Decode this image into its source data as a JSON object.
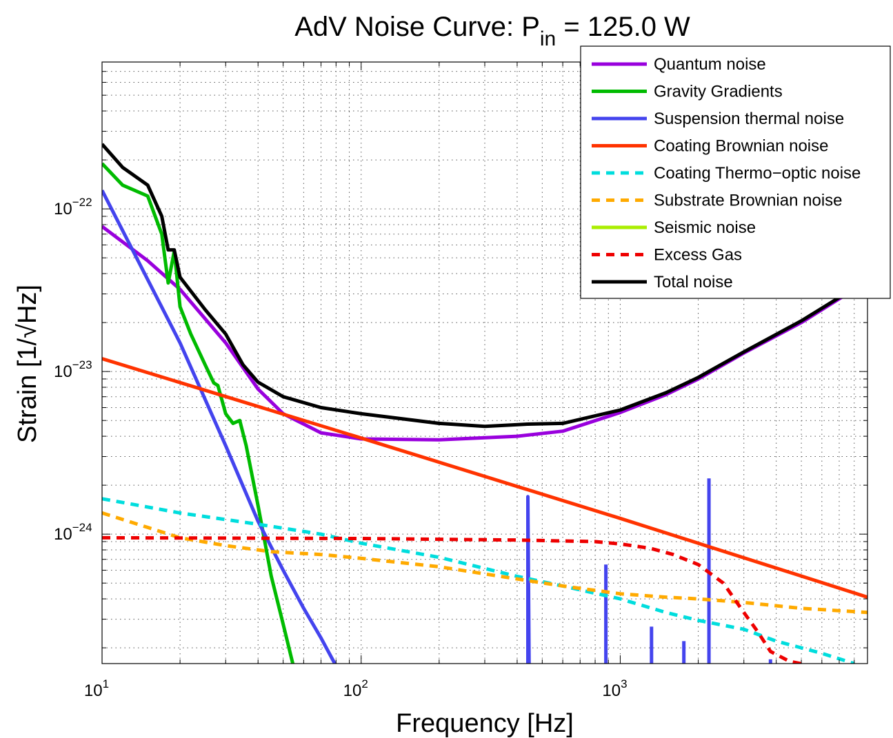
{
  "chart_data": {
    "type": "line",
    "title": {
      "main": "AdV Noise Curve: P",
      "subscript": "in",
      "rest": " = 125.0 W"
    },
    "xlabel": "Frequency [Hz]",
    "ylabel": "Strain [1/√Hz]",
    "x_scale": "log",
    "y_scale": "log",
    "xlim": [
      10,
      9000
    ],
    "ylim": [
      1.6e-25,
      8e-22
    ],
    "grid": true,
    "legend_position": "top-right",
    "x_ticks": [
      {
        "value": 10,
        "base": "10",
        "exp": "1"
      },
      {
        "value": 100,
        "base": "10",
        "exp": "2"
      },
      {
        "value": 1000,
        "base": "10",
        "exp": "3"
      }
    ],
    "y_ticks": [
      {
        "value": 1e-24,
        "base": "10",
        "exp": "−24"
      },
      {
        "value": 1e-23,
        "base": "10",
        "exp": "−23"
      },
      {
        "value": 1e-22,
        "base": "10",
        "exp": "−22"
      }
    ],
    "series": [
      {
        "name": "Quantum noise",
        "color": "#9900dd",
        "dashed": false,
        "points": [
          [
            10,
            7.8e-23
          ],
          [
            15,
            4.8e-23
          ],
          [
            20,
            3.2e-23
          ],
          [
            30,
            1.5e-23
          ],
          [
            40,
            7.8e-24
          ],
          [
            50,
            5.5e-24
          ],
          [
            70,
            4.2e-24
          ],
          [
            100,
            3.85e-24
          ],
          [
            200,
            3.8e-24
          ],
          [
            400,
            4e-24
          ],
          [
            600,
            4.3e-24
          ],
          [
            1000,
            5.6e-24
          ],
          [
            1500,
            7.2e-24
          ],
          [
            2000,
            9e-24
          ],
          [
            3000,
            1.3e-23
          ],
          [
            5000,
            2e-23
          ],
          [
            7000,
            2.8e-23
          ],
          [
            9000,
            3.6e-23
          ]
        ]
      },
      {
        "name": "Gravity Gradients",
        "color": "#00bb00",
        "dashed": false,
        "points": [
          [
            10,
            1.9e-22
          ],
          [
            12,
            1.4e-22
          ],
          [
            15,
            1.2e-22
          ],
          [
            17,
            7e-23
          ],
          [
            18,
            3.5e-23
          ],
          [
            19,
            5.5e-23
          ],
          [
            20,
            2.5e-23
          ],
          [
            22,
            1.7e-23
          ],
          [
            25,
            1.1e-23
          ],
          [
            27,
            8.5e-24
          ],
          [
            28,
            8.2e-24
          ],
          [
            30,
            5.5e-24
          ],
          [
            32,
            4.8e-24
          ],
          [
            34,
            5e-24
          ],
          [
            36,
            3.5e-24
          ],
          [
            40,
            1.5e-24
          ],
          [
            45,
            5.5e-25
          ],
          [
            50,
            2.8e-25
          ],
          [
            55,
            1.5e-25
          ]
        ]
      },
      {
        "name": "Suspension thermal noise",
        "color": "#4444ee",
        "dashed": false,
        "points": [
          [
            10,
            1.3e-22
          ],
          [
            20,
            1.5e-23
          ],
          [
            30,
            3.5e-24
          ],
          [
            40,
            1.2e-24
          ],
          [
            50,
            6e-25
          ],
          [
            60,
            3.5e-25
          ],
          [
            70,
            2.3e-25
          ],
          [
            80,
            1.55e-25
          ]
        ]
      },
      {
        "name": "Suspension violin mode at 440 Hz",
        "color": "#4444ee",
        "dashed": false,
        "points": [
          [
            440,
            1.55e-25
          ],
          [
            440,
            1.7e-24
          ],
          [
            445,
            1.55e-25
          ]
        ]
      },
      {
        "name": "Suspension violin mode at 880 Hz",
        "color": "#4444ee",
        "dashed": false,
        "points": [
          [
            880,
            1.55e-25
          ],
          [
            880,
            6.5e-25
          ]
        ]
      },
      {
        "name": "Suspension violin mode at 1320 Hz",
        "color": "#4444ee",
        "dashed": false,
        "points": [
          [
            1320,
            1.55e-25
          ],
          [
            1320,
            2.7e-25
          ]
        ]
      },
      {
        "name": "Suspension violin mode at 1760 Hz",
        "color": "#4444ee",
        "dashed": false,
        "points": [
          [
            1760,
            1.55e-25
          ],
          [
            1760,
            2.2e-25
          ]
        ]
      },
      {
        "name": "Suspension violin mode at 2200 Hz",
        "color": "#4444ee",
        "dashed": false,
        "points": [
          [
            2200,
            1.55e-25
          ],
          [
            2200,
            2.2e-24
          ]
        ]
      },
      {
        "name": "Suspension thermal noise high-frequency tail",
        "color": "#4444ee",
        "dashed": false,
        "points": [
          [
            3800,
            1.55e-25
          ],
          [
            3800,
            1.7e-25
          ]
        ]
      },
      {
        "name": "Coating Brownian noise",
        "color": "#ff3300",
        "dashed": false,
        "points": [
          [
            10,
            1.2e-23
          ],
          [
            100,
            3.9e-24
          ],
          [
            1000,
            1.25e-24
          ],
          [
            9000,
            4.1e-25
          ]
        ]
      },
      {
        "name": "Coating Thermo−optic noise",
        "color": "#00dddd",
        "dashed": true,
        "points": [
          [
            10,
            1.65e-24
          ],
          [
            20,
            1.35e-24
          ],
          [
            40,
            1.15e-24
          ],
          [
            70,
            1e-24
          ],
          [
            100,
            8.8e-25
          ],
          [
            200,
            7.2e-25
          ],
          [
            400,
            5.5e-25
          ],
          [
            600,
            4.8e-25
          ],
          [
            1000,
            4e-25
          ],
          [
            1500,
            3.3e-25
          ],
          [
            2000,
            2.95e-25
          ],
          [
            3000,
            2.6e-25
          ],
          [
            4000,
            2.2e-25
          ],
          [
            6000,
            1.85e-25
          ],
          [
            8000,
            1.6e-25
          ]
        ]
      },
      {
        "name": "Substrate Brownian noise",
        "color": "#ffaa00",
        "dashed": true,
        "points": [
          [
            10,
            1.35e-24
          ],
          [
            15,
            1.1e-24
          ],
          [
            20,
            9.5e-25
          ],
          [
            30,
            8.5e-25
          ],
          [
            45,
            7.8e-25
          ],
          [
            70,
            7.5e-25
          ],
          [
            100,
            7.1e-25
          ],
          [
            200,
            6.3e-25
          ],
          [
            400,
            5.3e-25
          ],
          [
            600,
            4.8e-25
          ],
          [
            1000,
            4.3e-25
          ],
          [
            1500,
            4.1e-25
          ],
          [
            2000,
            4e-25
          ],
          [
            3000,
            3.8e-25
          ],
          [
            5000,
            3.5e-25
          ],
          [
            9000,
            3.3e-25
          ]
        ]
      },
      {
        "name": "Seismic noise",
        "color": "#aaee00",
        "dashed": false,
        "points": []
      },
      {
        "name": "Excess Gas",
        "color": "#ee0000",
        "dashed": true,
        "points": [
          [
            10,
            9.5e-25
          ],
          [
            100,
            9.4e-25
          ],
          [
            200,
            9.3e-25
          ],
          [
            400,
            9.2e-25
          ],
          [
            800,
            9e-25
          ],
          [
            1000,
            8.7e-25
          ],
          [
            1300,
            8.2e-25
          ],
          [
            1600,
            7.5e-25
          ],
          [
            2000,
            6.5e-25
          ],
          [
            2500,
            5e-25
          ],
          [
            3000,
            3.3e-25
          ],
          [
            3400,
            2.5e-25
          ],
          [
            3800,
            1.9e-25
          ],
          [
            4500,
            1.65e-25
          ],
          [
            5500,
            1.55e-25
          ]
        ]
      },
      {
        "name": "Total noise",
        "color": "#000000",
        "dashed": false,
        "points": [
          [
            10,
            2.5e-22
          ],
          [
            12,
            1.8e-22
          ],
          [
            15,
            1.4e-22
          ],
          [
            17,
            9e-23
          ],
          [
            18,
            5.6e-23
          ],
          [
            19,
            5.6e-23
          ],
          [
            20,
            3.8e-23
          ],
          [
            25,
            2.4e-23
          ],
          [
            30,
            1.7e-23
          ],
          [
            35,
            1.1e-23
          ],
          [
            40,
            8.6e-24
          ],
          [
            50,
            7e-24
          ],
          [
            70,
            6e-24
          ],
          [
            100,
            5.5e-24
          ],
          [
            200,
            4.8e-24
          ],
          [
            300,
            4.6e-24
          ],
          [
            440,
            4.75e-24
          ],
          [
            600,
            4.8e-24
          ],
          [
            1000,
            5.8e-24
          ],
          [
            1500,
            7.4e-24
          ],
          [
            2000,
            9.2e-24
          ],
          [
            3000,
            1.32e-23
          ],
          [
            5000,
            2.05e-23
          ],
          [
            7000,
            2.85e-23
          ],
          [
            9000,
            3.65e-23
          ]
        ]
      }
    ],
    "legend": [
      {
        "label": "Quantum noise",
        "color": "#9900dd",
        "dashed": false
      },
      {
        "label": "Gravity Gradients",
        "color": "#00bb00",
        "dashed": false
      },
      {
        "label": "Suspension thermal noise",
        "color": "#4444ee",
        "dashed": false
      },
      {
        "label": "Coating Brownian noise",
        "color": "#ff3300",
        "dashed": false
      },
      {
        "label": "Coating Thermo−optic noise",
        "color": "#00dddd",
        "dashed": true
      },
      {
        "label": "Substrate Brownian noise",
        "color": "#ffaa00",
        "dashed": true
      },
      {
        "label": "Seismic noise",
        "color": "#aaee00",
        "dashed": false
      },
      {
        "label": "Excess Gas",
        "color": "#ee0000",
        "dashed": true
      },
      {
        "label": "Total noise",
        "color": "#000000",
        "dashed": false
      }
    ]
  }
}
